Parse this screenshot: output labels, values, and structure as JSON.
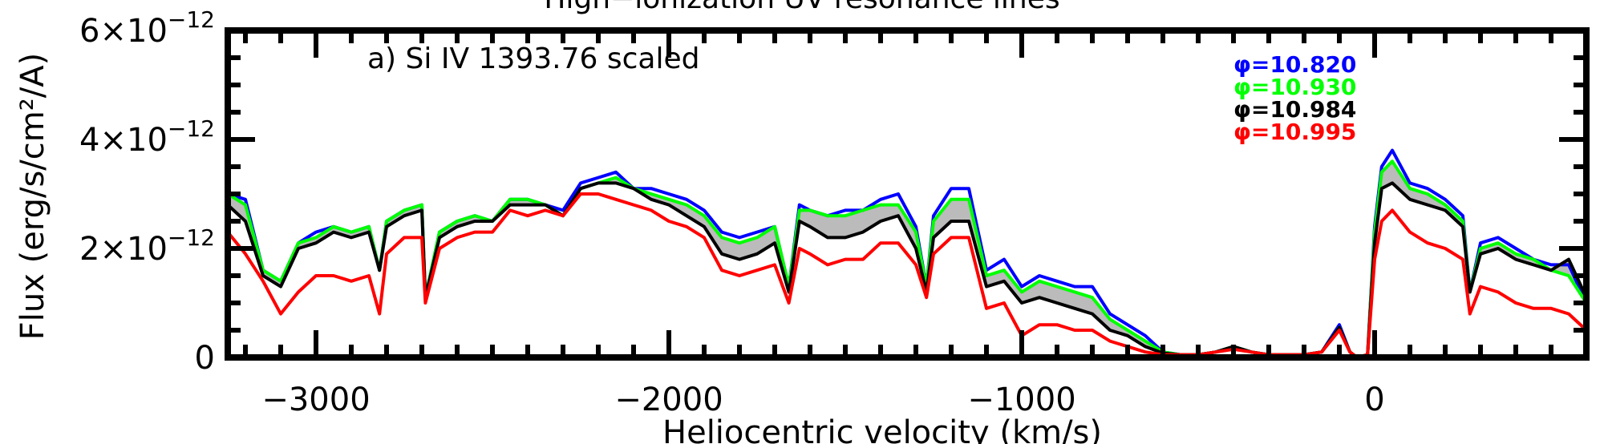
{
  "chart_data": {
    "type": "line",
    "title": "High−ionization UV resonance lines",
    "xlabel": "Heliocentric velocity (km/s)",
    "ylabel": "Flux (erg/s/cm²/A)",
    "annotation": "a) Si IV 1393.76 scaled",
    "xlim": [
      -3250,
      600
    ],
    "ylim": [
      0,
      6e-12
    ],
    "x_ticks": [
      {
        "value": -3000,
        "label": "−3000"
      },
      {
        "value": -2000,
        "label": "−2000"
      },
      {
        "value": -1000,
        "label": "−1000"
      },
      {
        "value": 0,
        "label": "0"
      }
    ],
    "y_ticks": [
      {
        "value": 0,
        "mantissa": "0",
        "exponent": ""
      },
      {
        "value": 2e-12,
        "mantissa": "2×10",
        "exponent": "−12"
      },
      {
        "value": 4e-12,
        "mantissa": "4×10",
        "exponent": "−12"
      },
      {
        "value": 6e-12,
        "mantissa": "6×10",
        "exponent": "−12"
      }
    ],
    "legend_position": "top-right",
    "series": [
      {
        "name": "φ=10.820",
        "color": "#0000ff",
        "x": [
          -3250,
          -3200,
          -3150,
          -3100,
          -3050,
          -3000,
          -2950,
          -2900,
          -2850,
          -2820,
          -2800,
          -2750,
          -2700,
          -2690,
          -2650,
          -2600,
          -2550,
          -2500,
          -2450,
          -2400,
          -2350,
          -2300,
          -2250,
          -2200,
          -2150,
          -2100,
          -2050,
          -2000,
          -1950,
          -1900,
          -1850,
          -1800,
          -1750,
          -1700,
          -1660,
          -1630,
          -1600,
          -1550,
          -1500,
          -1450,
          -1400,
          -1350,
          -1300,
          -1270,
          -1250,
          -1200,
          -1150,
          -1100,
          -1050,
          -1000,
          -950,
          -900,
          -850,
          -800,
          -750,
          -700,
          -650,
          -600,
          -550,
          -500,
          -450,
          -400,
          -350,
          -300,
          -250,
          -200,
          -150,
          -100,
          -70,
          -50,
          -20,
          0,
          20,
          50,
          100,
          150,
          200,
          250,
          270,
          300,
          350,
          400,
          450,
          500,
          550,
          600
        ],
        "y": [
          3e-12,
          2.9e-12,
          1.6e-12,
          1.4e-12,
          2.1e-12,
          2.3e-12,
          2.4e-12,
          2.3e-12,
          2.4e-12,
          1.6e-12,
          2.5e-12,
          2.7e-12,
          2.8e-12,
          1.1e-12,
          2.3e-12,
          2.5e-12,
          2.6e-12,
          2.5e-12,
          2.9e-12,
          2.9e-12,
          2.8e-12,
          2.7e-12,
          3.2e-12,
          3.3e-12,
          3.4e-12,
          3.1e-12,
          3.1e-12,
          3e-12,
          2.9e-12,
          2.7e-12,
          2.3e-12,
          2.2e-12,
          2.3e-12,
          2.4e-12,
          1.3e-12,
          2.8e-12,
          2.7e-12,
          2.6e-12,
          2.7e-12,
          2.7e-12,
          2.9e-12,
          3e-12,
          2.4e-12,
          1.3e-12,
          2.6e-12,
          3.1e-12,
          3.1e-12,
          1.6e-12,
          1.8e-12,
          1.3e-12,
          1.5e-12,
          1.4e-12,
          1.3e-12,
          1.3e-12,
          8e-13,
          6e-13,
          4e-13,
          1e-13,
          5e-14,
          5e-14,
          1e-13,
          2e-13,
          1e-13,
          5e-14,
          5e-14,
          5e-14,
          1e-13,
          6e-13,
          1e-13,
          0.0,
          5e-14,
          2.4e-12,
          3.5e-12,
          3.8e-12,
          3.2e-12,
          3.1e-12,
          2.9e-12,
          2.6e-12,
          1.2e-12,
          2.1e-12,
          2.2e-12,
          2e-12,
          1.8e-12,
          1.7e-12,
          1.7e-12,
          1e-12
        ]
      },
      {
        "name": "φ=10.930",
        "color": "#00ff00",
        "x": [
          -3250,
          -3200,
          -3150,
          -3100,
          -3050,
          -3000,
          -2950,
          -2900,
          -2850,
          -2820,
          -2800,
          -2750,
          -2700,
          -2690,
          -2650,
          -2600,
          -2550,
          -2500,
          -2450,
          -2400,
          -2350,
          -2300,
          -2250,
          -2200,
          -2150,
          -2100,
          -2050,
          -2000,
          -1950,
          -1900,
          -1850,
          -1800,
          -1750,
          -1700,
          -1660,
          -1630,
          -1600,
          -1550,
          -1500,
          -1450,
          -1400,
          -1350,
          -1300,
          -1270,
          -1250,
          -1200,
          -1150,
          -1100,
          -1050,
          -1000,
          -950,
          -900,
          -850,
          -800,
          -750,
          -700,
          -650,
          -600,
          -550,
          -500,
          -450,
          -400,
          -350,
          -300,
          -250,
          -200,
          -150,
          -100,
          -70,
          -50,
          -20,
          0,
          20,
          50,
          100,
          150,
          200,
          250,
          270,
          300,
          350,
          400,
          450,
          500,
          550,
          600
        ],
        "y": [
          3e-12,
          2.8e-12,
          1.6e-12,
          1.4e-12,
          2.1e-12,
          2.2e-12,
          2.4e-12,
          2.3e-12,
          2.4e-12,
          1.6e-12,
          2.5e-12,
          2.7e-12,
          2.8e-12,
          1.1e-12,
          2.3e-12,
          2.5e-12,
          2.6e-12,
          2.5e-12,
          2.9e-12,
          2.9e-12,
          2.8e-12,
          2.6e-12,
          3.1e-12,
          3.2e-12,
          3.3e-12,
          3.1e-12,
          3e-12,
          2.9e-12,
          2.8e-12,
          2.6e-12,
          2.2e-12,
          2.1e-12,
          2.2e-12,
          2.4e-12,
          1.3e-12,
          2.7e-12,
          2.7e-12,
          2.6e-12,
          2.6e-12,
          2.7e-12,
          2.8e-12,
          2.8e-12,
          2.3e-12,
          1.3e-12,
          2.5e-12,
          2.9e-12,
          2.9e-12,
          1.5e-12,
          1.6e-12,
          1.2e-12,
          1.4e-12,
          1.3e-12,
          1.2e-12,
          1.1e-12,
          7e-13,
          5e-13,
          3e-13,
          1e-13,
          5e-14,
          5e-14,
          1e-13,
          2e-13,
          1e-13,
          5e-14,
          5e-14,
          5e-14,
          1e-13,
          5.5e-13,
          1e-13,
          0.0,
          5e-14,
          2.3e-12,
          3.4e-12,
          3.6e-12,
          3.1e-12,
          3e-12,
          2.8e-12,
          2.5e-12,
          1.2e-12,
          2e-12,
          2.1e-12,
          1.9e-12,
          1.8e-12,
          1.6e-12,
          1.5e-12,
          1e-12
        ]
      },
      {
        "name": "φ=10.984",
        "color": "#000000",
        "x": [
          -3250,
          -3200,
          -3150,
          -3100,
          -3050,
          -3000,
          -2950,
          -2900,
          -2850,
          -2820,
          -2800,
          -2750,
          -2700,
          -2690,
          -2650,
          -2600,
          -2550,
          -2500,
          -2450,
          -2400,
          -2350,
          -2300,
          -2250,
          -2200,
          -2150,
          -2100,
          -2050,
          -2000,
          -1950,
          -1900,
          -1850,
          -1800,
          -1750,
          -1700,
          -1660,
          -1630,
          -1600,
          -1550,
          -1500,
          -1450,
          -1400,
          -1350,
          -1300,
          -1270,
          -1250,
          -1200,
          -1150,
          -1100,
          -1050,
          -1000,
          -950,
          -900,
          -850,
          -800,
          -750,
          -700,
          -650,
          -600,
          -550,
          -500,
          -450,
          -400,
          -350,
          -300,
          -250,
          -200,
          -150,
          -100,
          -70,
          -50,
          -20,
          0,
          20,
          50,
          100,
          150,
          200,
          250,
          270,
          300,
          350,
          400,
          450,
          500,
          550,
          600
        ],
        "y": [
          2.8e-12,
          2.5e-12,
          1.5e-12,
          1.3e-12,
          2e-12,
          2.1e-12,
          2.3e-12,
          2.2e-12,
          2.3e-12,
          1.6e-12,
          2.4e-12,
          2.6e-12,
          2.7e-12,
          1.1e-12,
          2.2e-12,
          2.4e-12,
          2.5e-12,
          2.5e-12,
          2.8e-12,
          2.8e-12,
          2.8e-12,
          2.6e-12,
          3.1e-12,
          3.2e-12,
          3.2e-12,
          3.1e-12,
          2.9e-12,
          2.8e-12,
          2.6e-12,
          2.4e-12,
          1.9e-12,
          1.8e-12,
          1.9e-12,
          2.1e-12,
          1.2e-12,
          2.5e-12,
          2.4e-12,
          2.2e-12,
          2.2e-12,
          2.3e-12,
          2.5e-12,
          2.6e-12,
          2e-12,
          1.2e-12,
          2.2e-12,
          2.5e-12,
          2.5e-12,
          1.3e-12,
          1.4e-12,
          1e-12,
          1.1e-12,
          1e-12,
          9e-13,
          8e-13,
          5e-13,
          4e-13,
          2e-13,
          8e-14,
          5e-14,
          5e-14,
          1e-13,
          2e-13,
          1e-13,
          5e-14,
          5e-14,
          5e-14,
          1e-13,
          5.5e-13,
          1e-13,
          0.0,
          5e-14,
          2.1e-12,
          3.1e-12,
          3.2e-12,
          2.9e-12,
          2.8e-12,
          2.7e-12,
          2.4e-12,
          1.2e-12,
          1.9e-12,
          2e-12,
          1.8e-12,
          1.7e-12,
          1.6e-12,
          1.8e-12,
          1.1e-12
        ]
      },
      {
        "name": "φ=10.995",
        "color": "#ff0000",
        "x": [
          -3250,
          -3200,
          -3150,
          -3100,
          -3050,
          -3000,
          -2950,
          -2900,
          -2850,
          -2820,
          -2800,
          -2750,
          -2700,
          -2690,
          -2650,
          -2600,
          -2550,
          -2500,
          -2450,
          -2400,
          -2350,
          -2300,
          -2250,
          -2200,
          -2150,
          -2100,
          -2050,
          -2000,
          -1950,
          -1900,
          -1850,
          -1800,
          -1750,
          -1700,
          -1660,
          -1630,
          -1600,
          -1550,
          -1500,
          -1450,
          -1400,
          -1350,
          -1300,
          -1270,
          -1250,
          -1200,
          -1150,
          -1100,
          -1050,
          -1000,
          -950,
          -900,
          -850,
          -800,
          -750,
          -700,
          -650,
          -600,
          -550,
          -500,
          -450,
          -400,
          -350,
          -300,
          -250,
          -200,
          -150,
          -100,
          -70,
          -50,
          -20,
          0,
          20,
          50,
          100,
          150,
          200,
          250,
          270,
          300,
          350,
          400,
          450,
          500,
          550,
          600
        ],
        "y": [
          2.3e-12,
          1.9e-12,
          1.4e-12,
          8e-13,
          1.2e-12,
          1.5e-12,
          1.5e-12,
          1.4e-12,
          1.5e-12,
          8e-13,
          1.9e-12,
          2.2e-12,
          2.2e-12,
          1e-12,
          2e-12,
          2.2e-12,
          2.3e-12,
          2.3e-12,
          2.7e-12,
          2.6e-12,
          2.7e-12,
          2.6e-12,
          3e-12,
          3e-12,
          2.9e-12,
          2.8e-12,
          2.7e-12,
          2.5e-12,
          2.4e-12,
          2.2e-12,
          1.6e-12,
          1.5e-12,
          1.6e-12,
          1.7e-12,
          1e-12,
          2e-12,
          1.9e-12,
          1.7e-12,
          1.8e-12,
          1.8e-12,
          2.1e-12,
          2.1e-12,
          1.7e-12,
          1.1e-12,
          1.9e-12,
          2.2e-12,
          2.2e-12,
          9e-13,
          1e-12,
          4e-13,
          6e-13,
          6e-13,
          5e-13,
          5e-13,
          3e-13,
          2e-13,
          1e-13,
          5e-14,
          5e-14,
          5e-14,
          1e-13,
          1.5e-13,
          1e-13,
          5e-14,
          5e-14,
          5e-14,
          1e-13,
          5e-13,
          1e-13,
          0.0,
          5e-14,
          1.8e-12,
          2.5e-12,
          2.7e-12,
          2.3e-12,
          2.1e-12,
          2e-12,
          1.8e-12,
          8e-13,
          1.3e-12,
          1.2e-12,
          1e-12,
          9e-13,
          9e-13,
          8e-13,
          5e-13
        ]
      }
    ],
    "shade": {
      "between": [
        "φ=10.930",
        "φ=10.984"
      ],
      "color": "#bbbbbb"
    }
  }
}
